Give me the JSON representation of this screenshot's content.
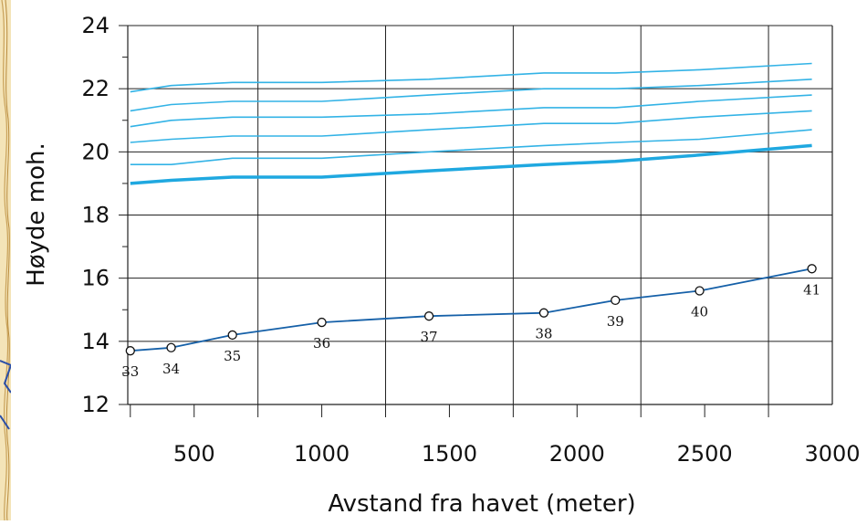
{
  "chart_data": {
    "type": "line",
    "xlabel": "Avstand fra havet (meter)",
    "ylabel": "Høyde moh.",
    "xlim": [
      240,
      3000
    ],
    "ylim": [
      12,
      24
    ],
    "xticks": [
      500,
      1000,
      1500,
      2000,
      2500,
      3000
    ],
    "yticks": [
      12,
      14,
      16,
      18,
      20,
      22,
      24
    ],
    "grid": true,
    "series": [
      {
        "line_style": "thin",
        "color": "#33b3e6",
        "x": [
          250,
          410,
          650,
          1000,
          1420,
          1870,
          2150,
          2480,
          2920
        ],
        "y": [
          21.9,
          22.1,
          22.2,
          22.2,
          22.3,
          22.5,
          22.5,
          22.6,
          22.8
        ]
      },
      {
        "line_style": "thin",
        "color": "#33b3e6",
        "x": [
          250,
          410,
          650,
          1000,
          1420,
          1870,
          2150,
          2480,
          2920
        ],
        "y": [
          21.3,
          21.5,
          21.6,
          21.6,
          21.8,
          22.0,
          22.0,
          22.1,
          22.3
        ]
      },
      {
        "line_style": "thin",
        "color": "#33b3e6",
        "x": [
          250,
          410,
          650,
          1000,
          1420,
          1870,
          2150,
          2480,
          2920
        ],
        "y": [
          20.8,
          21.0,
          21.1,
          21.1,
          21.2,
          21.4,
          21.4,
          21.6,
          21.8
        ]
      },
      {
        "line_style": "thin",
        "color": "#33b3e6",
        "x": [
          250,
          410,
          650,
          1000,
          1420,
          1870,
          2150,
          2480,
          2920
        ],
        "y": [
          20.3,
          20.4,
          20.5,
          20.5,
          20.7,
          20.9,
          20.9,
          21.1,
          21.3
        ]
      },
      {
        "line_style": "thin",
        "color": "#33b3e6",
        "x": [
          250,
          410,
          650,
          1000,
          1420,
          1870,
          2150,
          2480,
          2920
        ],
        "y": [
          19.6,
          19.6,
          19.8,
          19.8,
          20.0,
          20.2,
          20.3,
          20.4,
          20.7
        ]
      },
      {
        "line_style": "thick",
        "color": "#1fa8e0",
        "x": [
          250,
          410,
          650,
          1000,
          1420,
          1870,
          2150,
          2480,
          2920
        ],
        "y": [
          19.0,
          19.1,
          19.2,
          19.2,
          19.4,
          19.6,
          19.7,
          19.9,
          20.2
        ]
      },
      {
        "line_style": "markers",
        "color": "#1560a8",
        "x": [
          250,
          410,
          650,
          1000,
          1420,
          1870,
          2150,
          2480,
          2920
        ],
        "y": [
          13.7,
          13.8,
          14.2,
          14.6,
          14.8,
          14.9,
          15.3,
          15.6,
          16.3
        ],
        "point_labels": [
          "33",
          "34",
          "35",
          "36",
          "37",
          "38",
          "39",
          "40",
          "41"
        ]
      }
    ]
  }
}
